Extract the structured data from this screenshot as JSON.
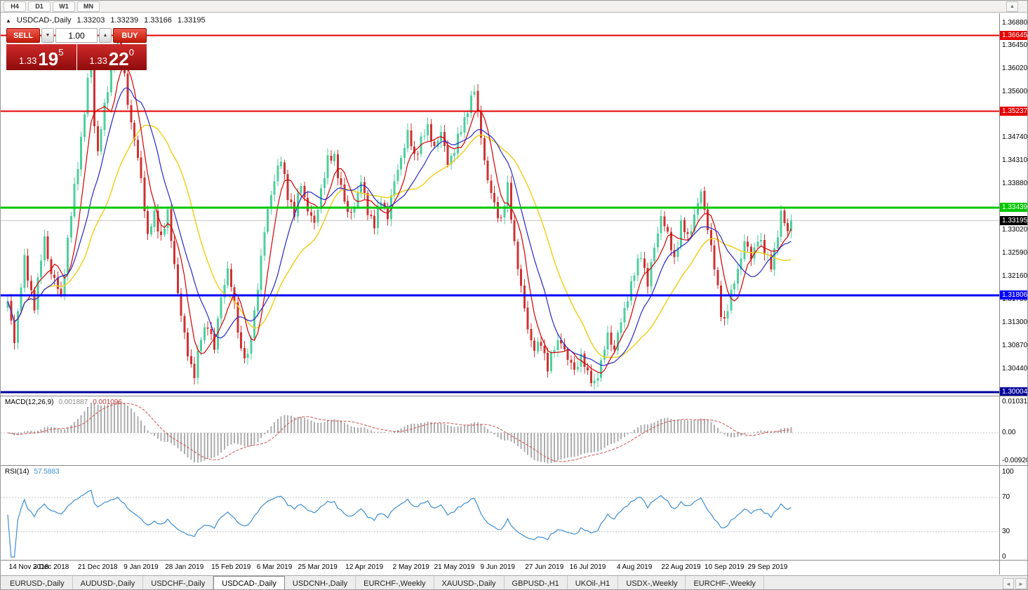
{
  "icons": {
    "collapse": "▲",
    "spinner_up": "▲",
    "spinner_down": "▼",
    "scroll_up": "▲",
    "tab_left": "◄",
    "tab_right": "►"
  },
  "toolbar": {
    "timeframes": [
      "H4",
      "D1",
      "W1",
      "MN"
    ]
  },
  "quote": {
    "symbol": "USDCAD-,Daily",
    "open": "1.33203",
    "high": "1.33239",
    "low": "1.33166",
    "close": "1.33195"
  },
  "trade_panel": {
    "sell_label": "SELL",
    "buy_label": "BUY",
    "volume": "1.00",
    "sell_price": {
      "base": "1.33",
      "pips": "19",
      "fraction": "5"
    },
    "buy_price": {
      "base": "1.33",
      "pips": "22",
      "fraction": "0"
    }
  },
  "chart_data": {
    "type": "candlestick",
    "symbol": "USDCAD",
    "timeframe": "Daily",
    "candle_count": 236,
    "visible_range": {
      "price_max": 1.369,
      "price_min": 1.2999
    },
    "clip_high": 1.3669,
    "clip_low": 1.3003,
    "colors": {
      "up": "#4ecf9d",
      "down": "#cd3333",
      "bid_line": "#c9c9c9"
    },
    "price_anchors": [
      [
        0,
        1.3165
      ],
      [
        2,
        1.31
      ],
      [
        5,
        1.3245
      ],
      [
        8,
        1.316
      ],
      [
        11,
        1.329
      ],
      [
        13,
        1.322
      ],
      [
        16,
        1.318
      ],
      [
        20,
        1.338
      ],
      [
        23,
        1.352
      ],
      [
        25,
        1.3635
      ],
      [
        26,
        1.35
      ],
      [
        27,
        1.345
      ],
      [
        29,
        1.353
      ],
      [
        31,
        1.36
      ],
      [
        33,
        1.3648
      ],
      [
        35,
        1.359
      ],
      [
        37,
        1.35
      ],
      [
        40,
        1.34
      ],
      [
        42,
        1.329
      ],
      [
        44,
        1.333
      ],
      [
        46,
        1.329
      ],
      [
        48,
        1.333
      ],
      [
        50,
        1.324
      ],
      [
        52,
        1.314
      ],
      [
        54,
        1.307
      ],
      [
        56,
        1.3035
      ],
      [
        58,
        1.31
      ],
      [
        60,
        1.313
      ],
      [
        62,
        1.308
      ],
      [
        64,
        1.318
      ],
      [
        66,
        1.323
      ],
      [
        68,
        1.316
      ],
      [
        70,
        1.308
      ],
      [
        72,
        1.306
      ],
      [
        74,
        1.315
      ],
      [
        76,
        1.325
      ],
      [
        78,
        1.334
      ],
      [
        80,
        1.34
      ],
      [
        82,
        1.343
      ],
      [
        84,
        1.337
      ],
      [
        86,
        1.333
      ],
      [
        88,
        1.339
      ],
      [
        90,
        1.334
      ],
      [
        92,
        1.331
      ],
      [
        94,
        1.338
      ],
      [
        96,
        1.343
      ],
      [
        98,
        1.344
      ],
      [
        100,
        1.338
      ],
      [
        102,
        1.333
      ],
      [
        104,
        1.335
      ],
      [
        106,
        1.339
      ],
      [
        108,
        1.334
      ],
      [
        110,
        1.331
      ],
      [
        112,
        1.336
      ],
      [
        114,
        1.333
      ],
      [
        116,
        1.339
      ],
      [
        118,
        1.344
      ],
      [
        120,
        1.348
      ],
      [
        122,
        1.344
      ],
      [
        124,
        1.347
      ],
      [
        126,
        1.349
      ],
      [
        128,
        1.346
      ],
      [
        130,
        1.348
      ],
      [
        132,
        1.343
      ],
      [
        134,
        1.345
      ],
      [
        136,
        1.349
      ],
      [
        138,
        1.353
      ],
      [
        140,
        1.356
      ],
      [
        142,
        1.348
      ],
      [
        144,
        1.339
      ],
      [
        146,
        1.335
      ],
      [
        148,
        1.332
      ],
      [
        150,
        1.338
      ],
      [
        152,
        1.328
      ],
      [
        154,
        1.319
      ],
      [
        156,
        1.312
      ],
      [
        158,
        1.308
      ],
      [
        160,
        1.309
      ],
      [
        162,
        1.305
      ],
      [
        164,
        1.308
      ],
      [
        166,
        1.31
      ],
      [
        168,
        1.306
      ],
      [
        170,
        1.304
      ],
      [
        172,
        1.307
      ],
      [
        174,
        1.303
      ],
      [
        176,
        1.302
      ],
      [
        178,
        1.305
      ],
      [
        180,
        1.311
      ],
      [
        182,
        1.308
      ],
      [
        184,
        1.313
      ],
      [
        186,
        1.318
      ],
      [
        188,
        1.322
      ],
      [
        190,
        1.326
      ],
      [
        192,
        1.32
      ],
      [
        194,
        1.327
      ],
      [
        196,
        1.333
      ],
      [
        198,
        1.329
      ],
      [
        200,
        1.325
      ],
      [
        202,
        1.331
      ],
      [
        204,
        1.329
      ],
      [
        206,
        1.333
      ],
      [
        208,
        1.337
      ],
      [
        210,
        1.331
      ],
      [
        212,
        1.323
      ],
      [
        214,
        1.315
      ],
      [
        215,
        1.3135
      ],
      [
        217,
        1.318
      ],
      [
        219,
        1.323
      ],
      [
        221,
        1.328
      ],
      [
        223,
        1.325
      ],
      [
        225,
        1.329
      ],
      [
        227,
        1.326
      ],
      [
        229,
        1.324
      ],
      [
        231,
        1.329
      ],
      [
        232,
        1.333
      ],
      [
        234,
        1.3305
      ],
      [
        235,
        1.33195
      ]
    ],
    "moving_averages": [
      {
        "period": 24,
        "color": "#f2cf1d",
        "width": 1.5
      },
      {
        "period": 6,
        "color": "#d40000",
        "width": 1.2
      },
      {
        "period": 13,
        "color": "#2727cc",
        "width": 1.2
      }
    ],
    "horizontal_lines": [
      {
        "price": 1.36645,
        "label": "1.36645",
        "color": "#e60000",
        "width": 2
      },
      {
        "price": 1.35237,
        "label": "1.35237",
        "color": "#e60000",
        "width": 2
      },
      {
        "price": 1.33439,
        "label": "1.33439",
        "color": "#00c800",
        "width": 3
      },
      {
        "price": 1.31806,
        "label": "1.31806",
        "color": "#0000ff",
        "width": 3
      },
      {
        "price": 1.30004,
        "label": "1.30004",
        "color": "#000099",
        "width": 3
      }
    ],
    "current_price": {
      "value": 1.33195,
      "label": "1.33195",
      "label_bg": "#000000"
    },
    "axis_ticks": [
      "1.36880",
      "1.36450",
      "1.36020",
      "1.35600",
      "1.35170",
      "1.34740",
      "1.34310",
      "1.33880",
      "1.33020",
      "1.32590",
      "1.32160",
      "1.31730",
      "1.31300",
      "1.30870",
      "1.30440"
    ],
    "date_labels": [
      {
        "i": 0,
        "t": "14 Nov 2018"
      },
      {
        "i": 13,
        "t": "3 Dec 2018"
      },
      {
        "i": 27,
        "t": "21 Dec 2018"
      },
      {
        "i": 40,
        "t": "9 Jan 2019"
      },
      {
        "i": 53,
        "t": "28 Jan 2019"
      },
      {
        "i": 67,
        "t": "15 Feb 2019"
      },
      {
        "i": 80,
        "t": "6 Mar 2019"
      },
      {
        "i": 93,
        "t": "25 Mar 2019"
      },
      {
        "i": 107,
        "t": "12 Apr 2019"
      },
      {
        "i": 121,
        "t": "2 May 2019"
      },
      {
        "i": 134,
        "t": "21 May 2019"
      },
      {
        "i": 147,
        "t": "9 Jun 2019"
      },
      {
        "i": 161,
        "t": "27 Jun 2019"
      },
      {
        "i": 174,
        "t": "16 Jul 2019"
      },
      {
        "i": 188,
        "t": "4 Aug 2019"
      },
      {
        "i": 202,
        "t": "22 Aug 2019"
      },
      {
        "i": 215,
        "t": "10 Sep 2019"
      },
      {
        "i": 228,
        "t": "29 Sep 2019"
      }
    ],
    "macd": {
      "label": "MACD(12,26,9)",
      "values": [
        "0.001887",
        "0.001096"
      ],
      "axis": [
        "0.010311",
        "0.00",
        "-0.009203"
      ],
      "range": [
        -0.009203,
        0.010311
      ],
      "histogram_color": "#adadad",
      "signal_color": "#cf4f4f"
    },
    "rsi": {
      "label": "RSI(14)",
      "value": "57.5883",
      "axis": [
        "100",
        "70",
        "30",
        "0"
      ],
      "levels": [
        70,
        30
      ],
      "line_color": "#3e8ed0"
    }
  },
  "tabs": {
    "items": [
      {
        "label": "EURUSD-,Daily",
        "active": false
      },
      {
        "label": "AUDUSD-,Daily",
        "active": false
      },
      {
        "label": "USDCHF-,Daily",
        "active": false
      },
      {
        "label": "USDCAD-,Daily",
        "active": true
      },
      {
        "label": "USDCNH-,Daily",
        "active": false
      },
      {
        "label": "EURCHF-,Weekly",
        "active": false
      },
      {
        "label": "XAUUSD-,Daily",
        "active": false
      },
      {
        "label": "GBPUSD-,H1",
        "active": false
      },
      {
        "label": "UKOil-,H1",
        "active": false
      },
      {
        "label": "USDX-,Weekly",
        "active": false
      },
      {
        "label": "EURCHF-,Weekly",
        "active": false
      }
    ]
  }
}
